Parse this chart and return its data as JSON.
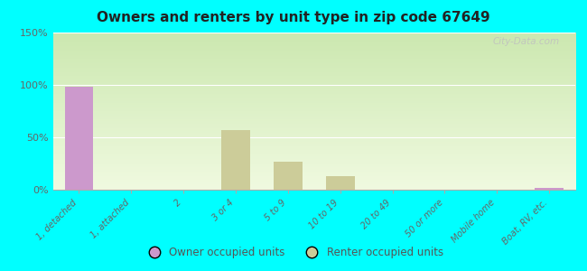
{
  "title": "Owners and renters by unit type in zip code 67649",
  "categories": [
    "1, detached",
    "1, attached",
    "2",
    "3 or 4",
    "5 to 9",
    "10 to 19",
    "20 to 49",
    "50 or more",
    "Mobile home",
    "Boat, RV, etc."
  ],
  "owner_values": [
    98,
    0,
    0,
    0,
    0,
    0,
    0,
    0,
    0,
    2
  ],
  "renter_values": [
    0,
    0,
    0,
    57,
    27,
    13,
    0,
    0,
    0,
    0
  ],
  "owner_color": "#cc99cc",
  "renter_color": "#cccc99",
  "bg_color": "#00ffff",
  "grad_top": "#cce8b0",
  "grad_bottom": "#f0fae0",
  "ylim": [
    0,
    150
  ],
  "yticks": [
    0,
    50,
    100,
    150
  ],
  "ytick_labels": [
    "0%",
    "50%",
    "100%",
    "150%"
  ],
  "bar_width": 0.55,
  "watermark": "City-Data.com",
  "legend_owner": "Owner occupied units",
  "legend_renter": "Renter occupied units"
}
